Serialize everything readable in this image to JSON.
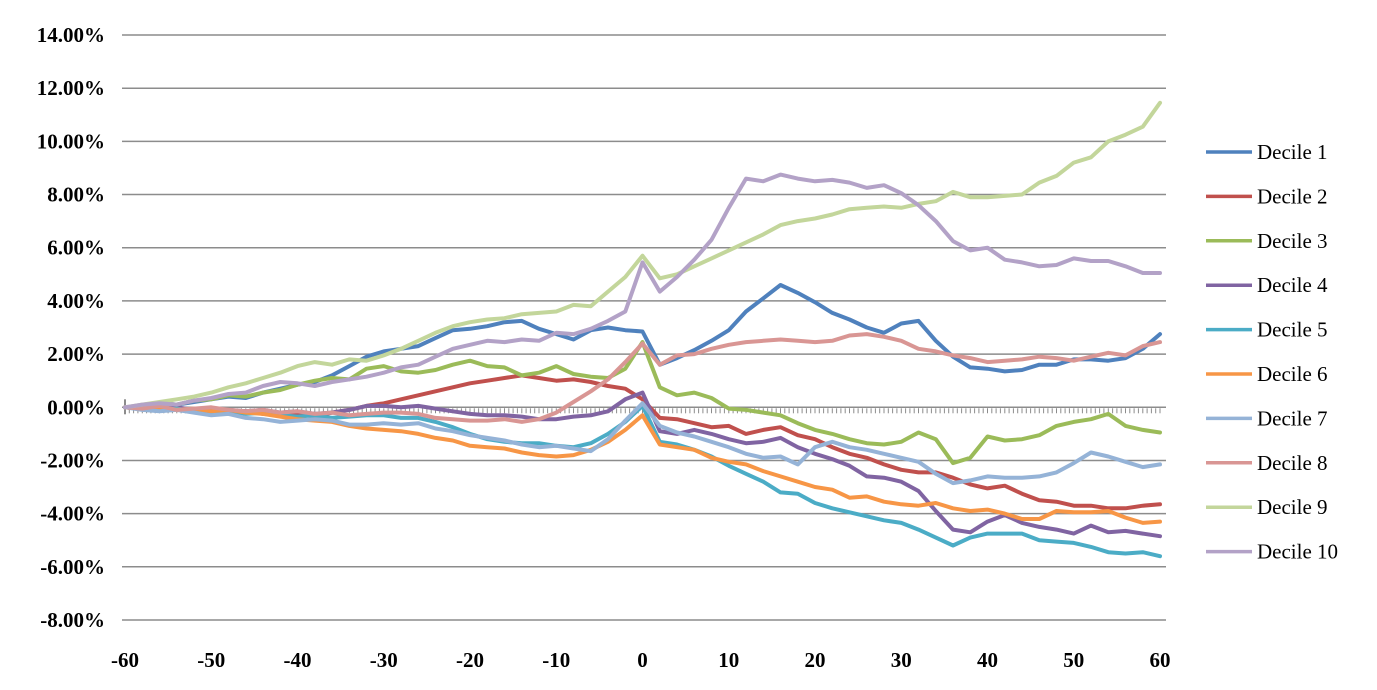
{
  "chart_data": {
    "type": "line",
    "title": "",
    "xlabel": "",
    "ylabel": "",
    "grid": true,
    "gridline_color": "#8c8c8c",
    "background_color": "#ffffff",
    "text_color": "#000000",
    "legend_position": "right",
    "x_axis": {
      "range": [
        -60,
        60
      ],
      "tick_values": [
        -60,
        -50,
        -40,
        -30,
        -20,
        -10,
        0,
        10,
        20,
        30,
        40,
        50,
        60
      ],
      "tick_labels": [
        "-60",
        "-50",
        "-40",
        "-30",
        "-20",
        "-10",
        "0",
        "10",
        "20",
        "30",
        "40",
        "50",
        "60"
      ],
      "minor_tick_step": 0.5
    },
    "y_axis": {
      "range_percent": [
        -8,
        14
      ],
      "tick_values": [
        14,
        12,
        10,
        8,
        6,
        4,
        2,
        0,
        -2,
        -4,
        -6,
        -8
      ],
      "tick_labels": [
        "14.00%",
        "12.00%",
        "10.00%",
        "8.00%",
        "6.00%",
        "4.00%",
        "2.00%",
        "0.00%",
        "-2.00%",
        "-4.00%",
        "-6.00%",
        "-8.00%"
      ]
    },
    "x": [
      -60,
      -58,
      -56,
      -54,
      -52,
      -50,
      -48,
      -46,
      -44,
      -42,
      -40,
      -38,
      -36,
      -34,
      -32,
      -30,
      -28,
      -26,
      -24,
      -22,
      -20,
      -18,
      -16,
      -14,
      -12,
      -10,
      -8,
      -6,
      -4,
      -2,
      0,
      2,
      4,
      6,
      8,
      10,
      12,
      14,
      16,
      18,
      20,
      22,
      24,
      26,
      28,
      30,
      32,
      34,
      36,
      38,
      40,
      42,
      44,
      46,
      48,
      50,
      52,
      54,
      56,
      58,
      60
    ],
    "series": [
      {
        "name": "Decile 1",
        "color": "#4F81BD",
        "values": [
          0.0,
          0.05,
          0.15,
          0.1,
          0.2,
          0.3,
          0.4,
          0.35,
          0.55,
          0.7,
          0.85,
          0.95,
          1.2,
          1.55,
          1.9,
          2.1,
          2.2,
          2.3,
          2.6,
          2.9,
          2.95,
          3.05,
          3.2,
          3.25,
          2.95,
          2.75,
          2.55,
          2.9,
          3.0,
          2.9,
          2.85,
          1.6,
          1.85,
          2.15,
          2.5,
          2.9,
          3.6,
          4.1,
          4.6,
          4.3,
          3.95,
          3.55,
          3.3,
          3.0,
          2.8,
          3.15,
          3.25,
          2.5,
          1.9,
          1.5,
          1.45,
          1.35,
          1.4,
          1.6,
          1.6,
          1.8,
          1.8,
          1.75,
          1.85,
          2.2,
          2.75
        ]
      },
      {
        "name": "Decile 2",
        "color": "#C0504D",
        "values": [
          0.0,
          -0.05,
          -0.1,
          -0.05,
          -0.15,
          -0.1,
          -0.2,
          -0.15,
          -0.25,
          -0.3,
          -0.25,
          -0.35,
          -0.2,
          -0.1,
          0.05,
          0.15,
          0.3,
          0.45,
          0.6,
          0.75,
          0.9,
          1.0,
          1.1,
          1.2,
          1.1,
          1.0,
          1.05,
          0.95,
          0.8,
          0.7,
          0.3,
          -0.4,
          -0.45,
          -0.6,
          -0.75,
          -0.7,
          -1.0,
          -0.85,
          -0.75,
          -1.05,
          -1.2,
          -1.5,
          -1.75,
          -1.9,
          -2.15,
          -2.35,
          -2.45,
          -2.45,
          -2.65,
          -2.9,
          -3.05,
          -2.95,
          -3.25,
          -3.5,
          -3.55,
          -3.7,
          -3.7,
          -3.8,
          -3.8,
          -3.7,
          -3.65
        ]
      },
      {
        "name": "Decile 3",
        "color": "#9BBB59",
        "values": [
          0.0,
          0.05,
          0.15,
          0.1,
          0.25,
          0.3,
          0.45,
          0.4,
          0.55,
          0.65,
          0.85,
          1.0,
          1.1,
          1.05,
          1.45,
          1.55,
          1.35,
          1.3,
          1.4,
          1.6,
          1.75,
          1.55,
          1.5,
          1.2,
          1.3,
          1.55,
          1.25,
          1.15,
          1.1,
          1.45,
          2.45,
          0.75,
          0.45,
          0.55,
          0.35,
          -0.05,
          -0.1,
          -0.2,
          -0.3,
          -0.6,
          -0.85,
          -1.0,
          -1.2,
          -1.35,
          -1.4,
          -1.3,
          -0.95,
          -1.2,
          -2.1,
          -1.9,
          -1.1,
          -1.25,
          -1.2,
          -1.05,
          -0.7,
          -0.55,
          -0.45,
          -0.25,
          -0.7,
          -0.85,
          -0.95
        ]
      },
      {
        "name": "Decile 4",
        "color": "#8064A2",
        "values": [
          0.0,
          0.05,
          -0.05,
          0.0,
          -0.1,
          -0.05,
          -0.1,
          -0.15,
          -0.1,
          -0.2,
          -0.15,
          -0.25,
          -0.2,
          -0.1,
          0.05,
          0.05,
          0.0,
          0.05,
          -0.05,
          -0.15,
          -0.25,
          -0.3,
          -0.3,
          -0.35,
          -0.45,
          -0.45,
          -0.35,
          -0.3,
          -0.15,
          0.3,
          0.55,
          -0.9,
          -1.0,
          -0.85,
          -1.0,
          -1.2,
          -1.35,
          -1.3,
          -1.15,
          -1.5,
          -1.75,
          -1.95,
          -2.2,
          -2.6,
          -2.65,
          -2.8,
          -3.15,
          -3.9,
          -4.6,
          -4.7,
          -4.3,
          -4.05,
          -4.35,
          -4.5,
          -4.6,
          -4.75,
          -4.45,
          -4.7,
          -4.65,
          -4.75,
          -4.85
        ]
      },
      {
        "name": "Decile 5",
        "color": "#4BACC6",
        "values": [
          0.0,
          -0.05,
          -0.1,
          -0.05,
          -0.15,
          -0.2,
          -0.15,
          -0.25,
          -0.2,
          -0.3,
          -0.35,
          -0.3,
          -0.4,
          -0.35,
          -0.3,
          -0.3,
          -0.4,
          -0.4,
          -0.55,
          -0.75,
          -1.0,
          -1.2,
          -1.3,
          -1.35,
          -1.35,
          -1.45,
          -1.5,
          -1.35,
          -1.0,
          -0.55,
          0.05,
          -1.3,
          -1.4,
          -1.6,
          -1.85,
          -2.2,
          -2.5,
          -2.8,
          -3.2,
          -3.25,
          -3.6,
          -3.8,
          -3.95,
          -4.1,
          -4.25,
          -4.35,
          -4.6,
          -4.9,
          -5.2,
          -4.9,
          -4.75,
          -4.75,
          -4.75,
          -5.0,
          -5.05,
          -5.1,
          -5.25,
          -5.45,
          -5.5,
          -5.45,
          -5.6
        ]
      },
      {
        "name": "Decile 6",
        "color": "#F79646",
        "values": [
          0.0,
          0.05,
          -0.05,
          -0.1,
          -0.05,
          -0.15,
          -0.1,
          -0.2,
          -0.25,
          -0.35,
          -0.45,
          -0.5,
          -0.55,
          -0.7,
          -0.8,
          -0.85,
          -0.9,
          -1.0,
          -1.15,
          -1.25,
          -1.45,
          -1.5,
          -1.55,
          -1.7,
          -1.8,
          -1.85,
          -1.8,
          -1.6,
          -1.3,
          -0.85,
          -0.3,
          -1.4,
          -1.5,
          -1.6,
          -1.9,
          -2.05,
          -2.15,
          -2.4,
          -2.6,
          -2.8,
          -3.0,
          -3.1,
          -3.4,
          -3.35,
          -3.55,
          -3.65,
          -3.7,
          -3.6,
          -3.8,
          -3.9,
          -3.85,
          -4.0,
          -4.2,
          -4.2,
          -3.9,
          -3.95,
          -3.95,
          -3.9,
          -4.15,
          -4.35,
          -4.3
        ]
      },
      {
        "name": "Decile 7",
        "color": "#95B3D7",
        "values": [
          0.0,
          -0.1,
          -0.15,
          -0.1,
          -0.2,
          -0.3,
          -0.25,
          -0.4,
          -0.45,
          -0.55,
          -0.5,
          -0.45,
          -0.5,
          -0.65,
          -0.65,
          -0.6,
          -0.65,
          -0.6,
          -0.8,
          -0.9,
          -1.05,
          -1.15,
          -1.25,
          -1.4,
          -1.5,
          -1.45,
          -1.55,
          -1.65,
          -1.2,
          -0.5,
          0.15,
          -0.7,
          -0.95,
          -1.1,
          -1.3,
          -1.5,
          -1.75,
          -1.9,
          -1.85,
          -2.15,
          -1.5,
          -1.3,
          -1.5,
          -1.6,
          -1.75,
          -1.9,
          -2.05,
          -2.5,
          -2.85,
          -2.75,
          -2.6,
          -2.65,
          -2.65,
          -2.6,
          -2.45,
          -2.1,
          -1.7,
          -1.85,
          -2.05,
          -2.25,
          -2.15
        ]
      },
      {
        "name": "Decile 8",
        "color": "#D99694",
        "values": [
          0.0,
          -0.05,
          0.05,
          -0.1,
          -0.05,
          0.0,
          -0.1,
          -0.15,
          -0.1,
          -0.2,
          -0.15,
          -0.25,
          -0.2,
          -0.3,
          -0.25,
          -0.2,
          -0.2,
          -0.25,
          -0.4,
          -0.45,
          -0.5,
          -0.5,
          -0.45,
          -0.55,
          -0.45,
          -0.2,
          0.2,
          0.6,
          1.05,
          1.7,
          2.4,
          1.6,
          1.95,
          2.0,
          2.2,
          2.35,
          2.45,
          2.5,
          2.55,
          2.5,
          2.45,
          2.5,
          2.7,
          2.75,
          2.65,
          2.5,
          2.2,
          2.1,
          1.95,
          1.85,
          1.7,
          1.75,
          1.8,
          1.9,
          1.85,
          1.75,
          1.9,
          2.05,
          1.95,
          2.3,
          2.45
        ]
      },
      {
        "name": "Decile 9",
        "color": "#C3D69B",
        "values": [
          0.0,
          0.1,
          0.2,
          0.3,
          0.4,
          0.55,
          0.75,
          0.9,
          1.1,
          1.3,
          1.55,
          1.7,
          1.6,
          1.8,
          1.75,
          1.95,
          2.2,
          2.5,
          2.8,
          3.05,
          3.2,
          3.3,
          3.35,
          3.5,
          3.55,
          3.6,
          3.85,
          3.8,
          4.35,
          4.9,
          5.7,
          4.85,
          5.0,
          5.3,
          5.6,
          5.9,
          6.2,
          6.5,
          6.85,
          7.0,
          7.1,
          7.25,
          7.45,
          7.5,
          7.55,
          7.5,
          7.65,
          7.75,
          8.1,
          7.9,
          7.9,
          7.95,
          8.0,
          8.45,
          8.7,
          9.2,
          9.4,
          10.0,
          10.25,
          10.55,
          11.45
        ]
      },
      {
        "name": "Decile 10",
        "color": "#B3A2C7",
        "values": [
          0.0,
          0.1,
          0.15,
          0.1,
          0.25,
          0.35,
          0.5,
          0.55,
          0.8,
          0.95,
          0.9,
          0.8,
          0.95,
          1.05,
          1.15,
          1.3,
          1.5,
          1.6,
          1.9,
          2.2,
          2.35,
          2.5,
          2.45,
          2.55,
          2.5,
          2.8,
          2.75,
          2.95,
          3.25,
          3.6,
          5.45,
          4.35,
          4.9,
          5.55,
          6.3,
          7.5,
          8.6,
          8.5,
          8.75,
          8.6,
          8.5,
          8.55,
          8.45,
          8.25,
          8.35,
          8.05,
          7.6,
          7.0,
          6.25,
          5.9,
          6.0,
          5.55,
          5.45,
          5.3,
          5.35,
          5.6,
          5.5,
          5.5,
          5.3,
          5.05,
          5.05
        ]
      }
    ],
    "legend_entries": [
      "Decile 1",
      "Decile 2",
      "Decile 3",
      "Decile 4",
      "Decile 5",
      "Decile 6",
      "Decile 7",
      "Decile 8",
      "Decile 9",
      "Decile 10"
    ]
  }
}
